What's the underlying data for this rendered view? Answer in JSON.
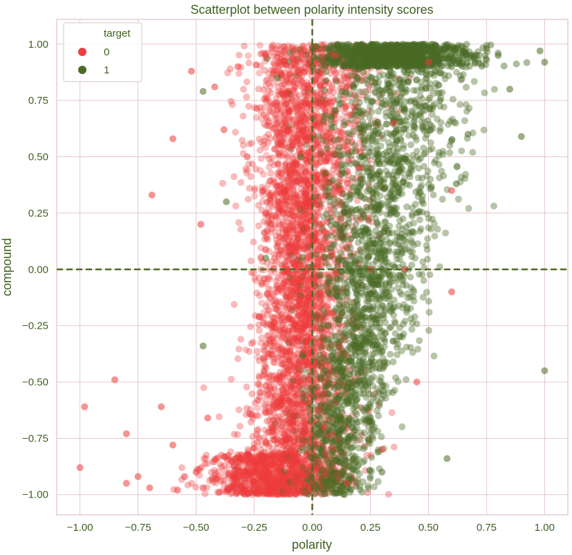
{
  "chart_data": {
    "type": "scatter",
    "title": "Scatterplot between polarity intensity scores",
    "xlabel": "polarity",
    "ylabel": "compound",
    "xlim": [
      -1.1,
      1.1
    ],
    "ylim": [
      -1.09,
      1.11
    ],
    "xticks": [
      -1.0,
      -0.75,
      -0.5,
      -0.25,
      0.0,
      0.25,
      0.5,
      0.75,
      1.0
    ],
    "xtick_labels": [
      "−1.00",
      "−0.75",
      "−0.50",
      "−0.25",
      "0.00",
      "0.25",
      "0.50",
      "0.75",
      "1.00"
    ],
    "yticks": [
      -1.0,
      -0.75,
      -0.5,
      -0.25,
      0.0,
      0.25,
      0.5,
      0.75,
      1.0
    ],
    "ytick_labels": [
      "−1.00",
      "−0.75",
      "−0.50",
      "−0.25",
      "0.00",
      "0.25",
      "0.50",
      "0.75",
      "1.00"
    ],
    "grid": true,
    "reference_lines": {
      "x": 0.0,
      "y": 0.0,
      "style": "dashed"
    },
    "legend": {
      "title": "target",
      "placement": "top-left"
    },
    "series": [
      {
        "name": "0",
        "color": "#ee3d3d",
        "points": [
          [
            -1.0,
            -0.88
          ],
          [
            -0.98,
            -0.61
          ],
          [
            -0.85,
            -0.49
          ],
          [
            -0.8,
            -0.95
          ],
          [
            -0.8,
            -0.73
          ],
          [
            -0.75,
            -0.92
          ],
          [
            -0.7,
            -0.97
          ],
          [
            -0.69,
            0.33
          ],
          [
            -0.65,
            -0.61
          ],
          [
            -0.6,
            0.58
          ],
          [
            -0.6,
            -0.78
          ],
          [
            -0.58,
            -0.98
          ],
          [
            -0.55,
            -0.92
          ],
          [
            -0.52,
            0.88
          ],
          [
            -0.5,
            -0.9
          ],
          [
            -0.47,
            -0.97
          ],
          [
            -0.45,
            -0.66
          ],
          [
            -0.4,
            -0.99
          ],
          [
            -0.48,
            0.2
          ],
          [
            -0.42,
            0.81
          ],
          [
            -0.38,
            0.62
          ],
          [
            -0.35,
            -0.85
          ],
          [
            -0.32,
            0.9
          ],
          [
            -0.3,
            -0.99
          ],
          [
            -0.28,
            0.5
          ],
          [
            -0.25,
            -0.95
          ],
          [
            -0.2,
            0.25
          ],
          [
            -0.15,
            -1.0
          ],
          [
            -0.1,
            0.7
          ],
          [
            -0.05,
            -0.9
          ],
          [
            0.0,
            0.15
          ],
          [
            0.05,
            -0.7
          ],
          [
            0.1,
            0.95
          ],
          [
            0.15,
            -0.95
          ],
          [
            0.2,
            0.45
          ],
          [
            0.25,
            0.0
          ],
          [
            0.3,
            -0.8
          ],
          [
            0.35,
            0.65
          ],
          [
            0.4,
            0.0
          ],
          [
            0.45,
            -0.5
          ],
          [
            0.5,
            0.92
          ],
          [
            0.6,
            -0.1
          ],
          [
            0.6,
            0.35
          ]
        ]
      },
      {
        "name": "1",
        "color": "#4a6b25",
        "points": [
          [
            1.0,
            0.92
          ],
          [
            1.0,
            -0.45
          ],
          [
            0.98,
            0.97
          ],
          [
            0.9,
            0.59
          ],
          [
            0.85,
            0.8
          ],
          [
            0.8,
            0.95
          ],
          [
            0.75,
            0.98
          ],
          [
            0.7,
            0.92
          ],
          [
            0.67,
            0.6
          ],
          [
            0.65,
            0.97
          ],
          [
            0.62,
            0.38
          ],
          [
            0.6,
            0.9
          ],
          [
            0.58,
            -0.84
          ],
          [
            0.55,
            0.75
          ],
          [
            0.5,
            0.97
          ],
          [
            0.45,
            0.25
          ],
          [
            0.4,
            0.98
          ],
          [
            0.35,
            0.5
          ],
          [
            0.3,
            -0.9
          ],
          [
            0.3,
            0.0
          ],
          [
            0.25,
            0.98
          ],
          [
            0.2,
            -0.5
          ],
          [
            0.15,
            0.95
          ],
          [
            0.1,
            0.2
          ],
          [
            0.05,
            -0.95
          ],
          [
            0.0,
            0.9
          ],
          [
            -0.05,
            0.5
          ],
          [
            -0.15,
            0.85
          ],
          [
            -0.37,
            0.3
          ],
          [
            -0.47,
            0.79
          ],
          [
            -0.47,
            -0.34
          ],
          [
            -0.2,
            0.05
          ],
          [
            0.0,
            0.98
          ]
        ]
      }
    ]
  }
}
